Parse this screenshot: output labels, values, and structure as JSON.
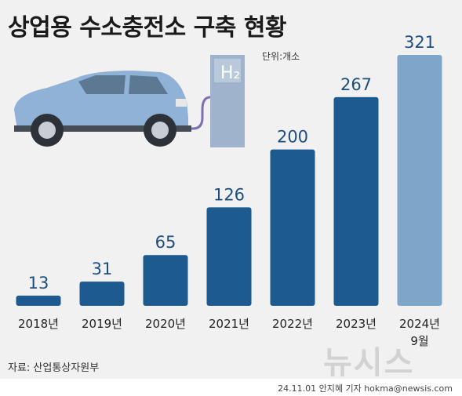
{
  "title": "상업용 수소충전소 구축 현황",
  "unit": "단위:개소",
  "source": "자료: 산업통상자원부",
  "credit": "24.11.01 안지혜 기자 hokma@newsis.com",
  "watermark": "뉴시스",
  "station_label": "H₂",
  "colors": {
    "bar": "#1c5a8f",
    "bar_highlight": "#7ea6c9",
    "background": "#f1f1f1",
    "label": "#1d4e7f"
  },
  "chart_data": {
    "type": "bar",
    "categories": [
      "2018년",
      "2019년",
      "2020년",
      "2021년",
      "2022년",
      "2023년",
      "2024년\n9월"
    ],
    "values": [
      13,
      31,
      65,
      126,
      200,
      267,
      321
    ],
    "title": "상업용 수소충전소 구축 현황",
    "xlabel": "",
    "ylabel": "",
    "unit": "단위:개소",
    "ylim": [
      0,
      321
    ],
    "grid": false,
    "highlight_index": 6
  }
}
